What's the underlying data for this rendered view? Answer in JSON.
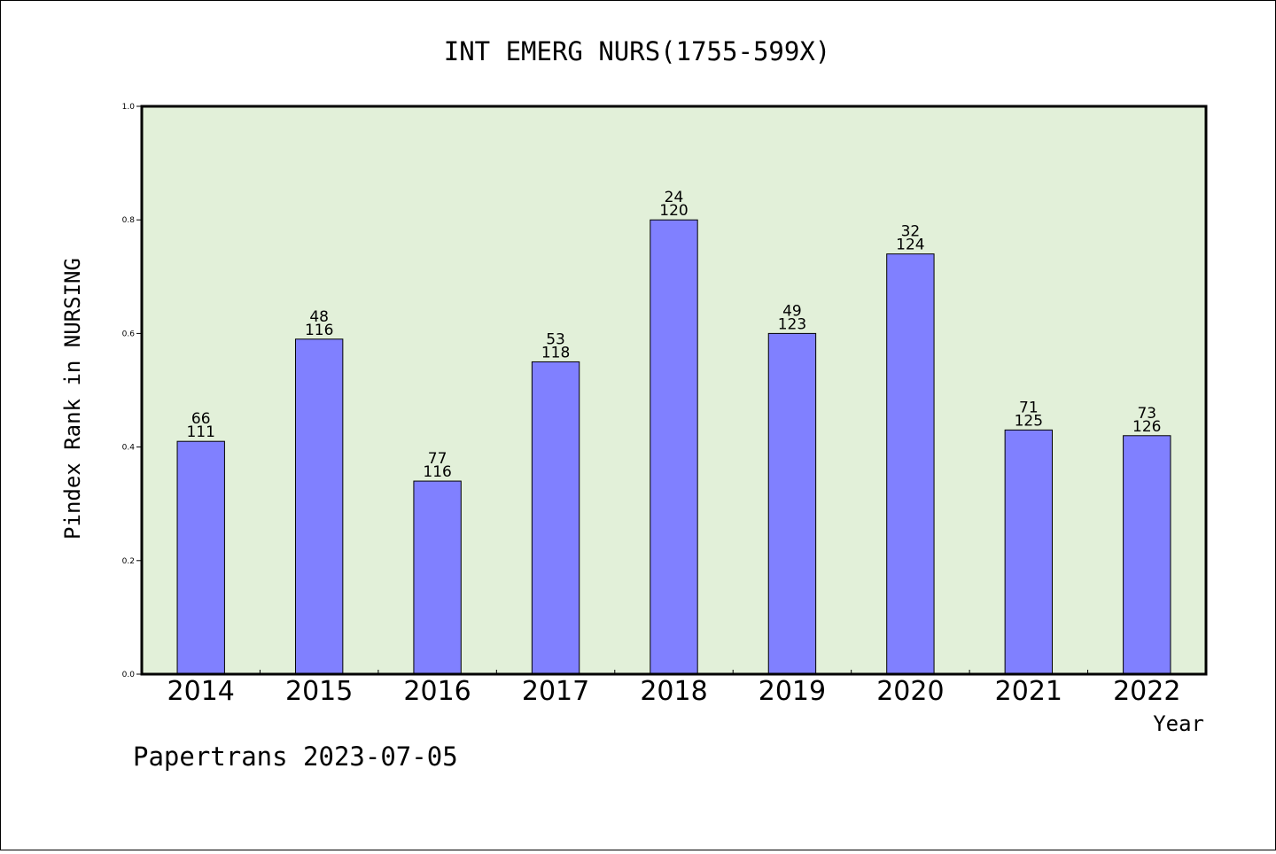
{
  "chart_data": {
    "type": "bar",
    "title": "INT EMERG NURS(1755-599X)",
    "xlabel": "Year",
    "ylabel": "Pindex Rank in NURSING",
    "ylim": [
      0,
      1.0
    ],
    "yticks": [
      "0.0",
      "0.2",
      "0.4",
      "0.6",
      "0.8",
      "1.0"
    ],
    "categories": [
      "2014",
      "2015",
      "2016",
      "2017",
      "2018",
      "2019",
      "2020",
      "2021",
      "2022"
    ],
    "values": [
      0.41,
      0.59,
      0.34,
      0.55,
      0.8,
      0.6,
      0.74,
      0.43,
      0.42
    ],
    "labels_top": [
      "66",
      "48",
      "77",
      "53",
      "24",
      "49",
      "32",
      "71",
      "73"
    ],
    "labels_bottom": [
      "111",
      "116",
      "116",
      "118",
      "120",
      "123",
      "124",
      "125",
      "126"
    ],
    "grid": false,
    "legend": "none",
    "colors": {
      "bar": "#8080ff",
      "plot_bg": "#e2f0d9",
      "axes": "#000000"
    }
  },
  "footer": "Papertrans 2023-07-05"
}
